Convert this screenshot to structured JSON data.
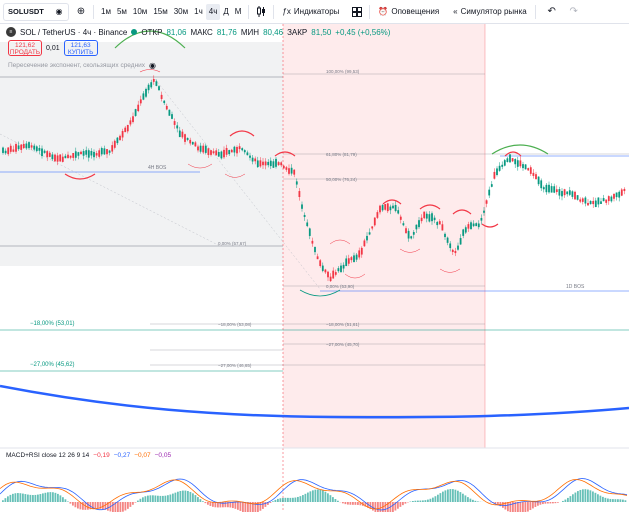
{
  "toolbar": {
    "symbol": "SOLUSDT",
    "timeframes": [
      "1м",
      "5м",
      "10м",
      "15м",
      "30м",
      "1ч",
      "4ч",
      "Д",
      "М"
    ],
    "active_timeframe": "4ч",
    "indicators_label": "Индикаторы",
    "alerts_label": "Оповещения",
    "market_sim_label": "Симулятор рынка"
  },
  "legend": {
    "title": "SOL / TetherUS · 4ч · Binance",
    "open_label": "ОТКР",
    "open": "81,06",
    "high_label": "МАКС",
    "high": "81,76",
    "low_label": "МИН",
    "low": "80,46",
    "close_label": "ЗАКР",
    "close": "81,50",
    "change": "+0,45 (+0,56%)"
  },
  "trade": {
    "sell_price": "121,62",
    "sell_label": "ПРОДАТЬ",
    "spread": "0,01",
    "buy_price": "121,63",
    "buy_label": "КУПИТЬ"
  },
  "indicator": {
    "name": "Пересечение экспонент, скользящих средних"
  },
  "levels": {
    "minus18": "−18,00% (53,01)",
    "minus27": "−27,00% (45,62)",
    "bos_left": "4H BOS",
    "bos_right": "1D BOS",
    "fib_100": "100,00% (99,53)",
    "fib_618": "61,80% (81,79)",
    "fib_50": "50,00% (76,24)",
    "fib_0a": "0,00% (57,67)",
    "fib_0b": "0,00% (53,90)",
    "fib_m18a": "−18,00% (53,08)",
    "fib_m18b": "−18,00% (51,61)",
    "fib_m27a": "−27,00% (46,65)",
    "fib_m27b": "−27,00% (45,70)"
  },
  "macd": {
    "title": "MACD+RSI close 12 26 9 14",
    "v1": "−0,19",
    "v2": "−0,27",
    "v3": "−0,07",
    "v4": "−0,05"
  },
  "colors": {
    "up": "#089981",
    "down": "#f23645",
    "blue": "#2962ff",
    "highlight": "rgba(242,54,69,0.10)",
    "grey": "rgba(120,123,134,0.10)"
  }
}
